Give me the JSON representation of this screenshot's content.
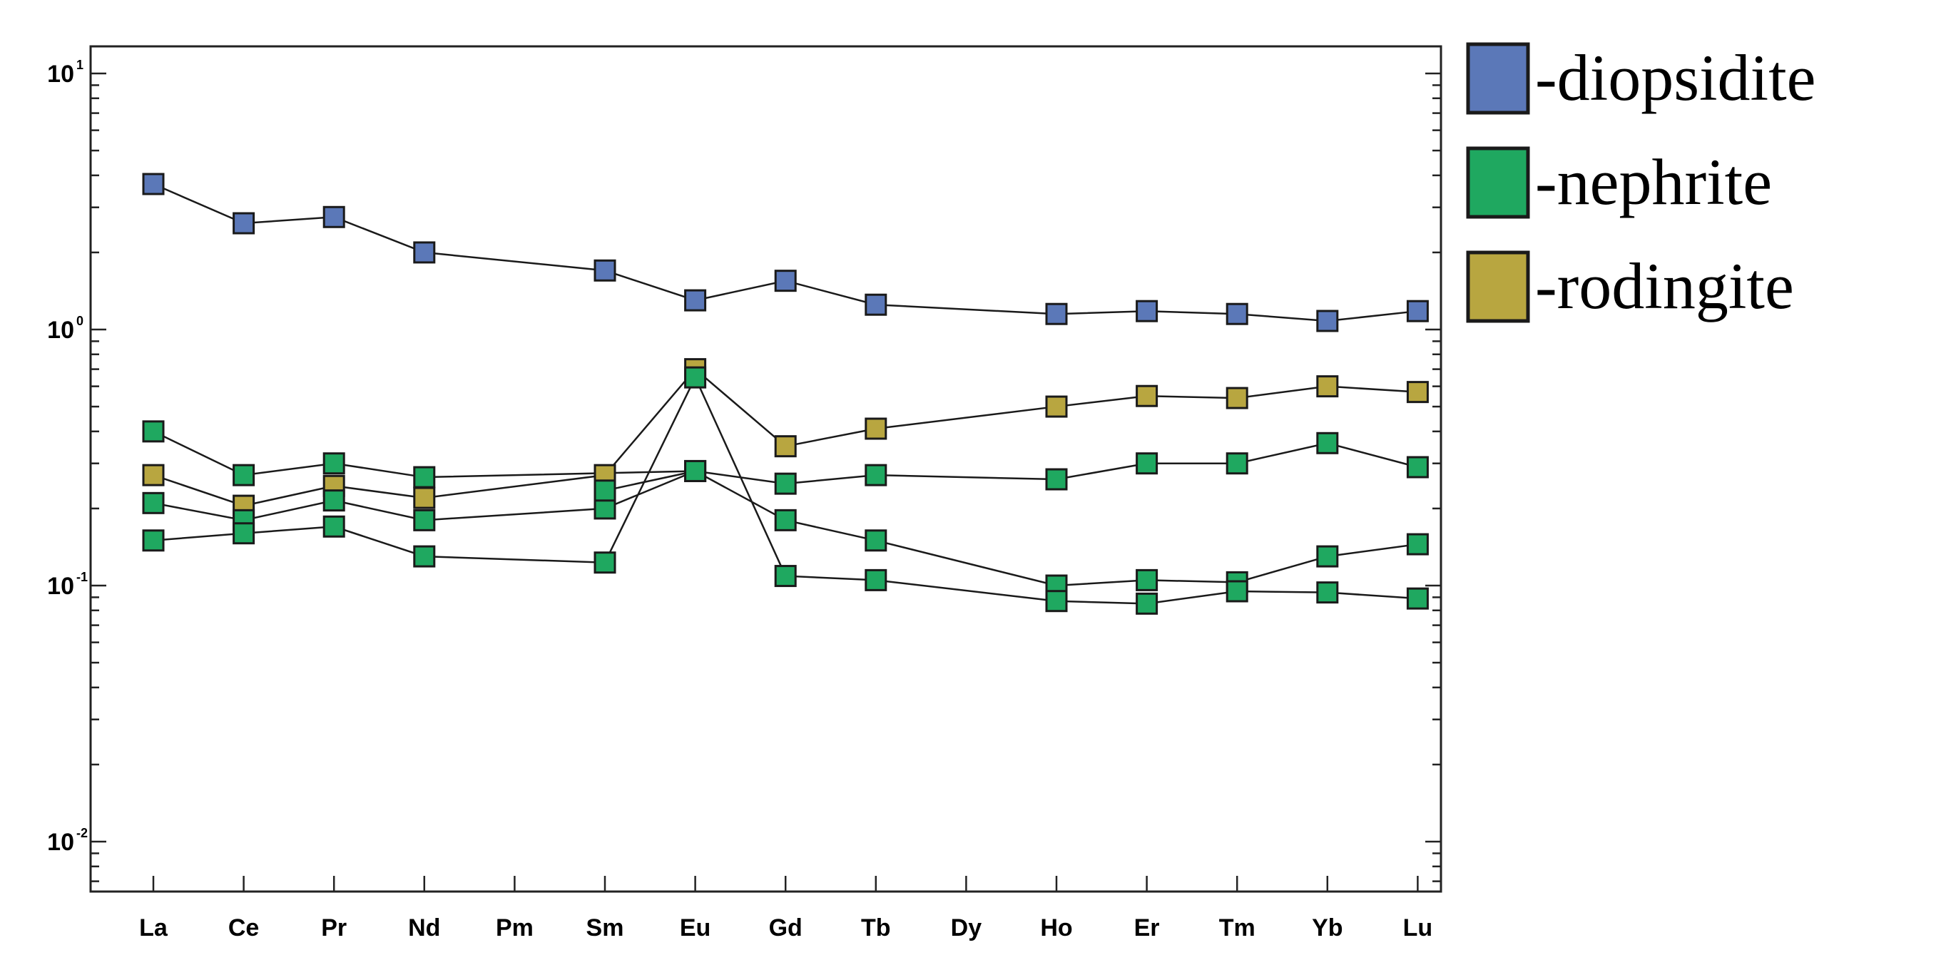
{
  "chart_data": {
    "type": "line",
    "y_scale": "log",
    "ylim": [
      0.001,
      10
    ],
    "grid": false,
    "legend_position": "right",
    "categories": [
      "La",
      "Ce",
      "Pr",
      "Nd",
      "Pm",
      "Sm",
      "Eu",
      "Gd",
      "Tb",
      "Dy",
      "Ho",
      "Er",
      "Tm",
      "Yb",
      "Lu"
    ],
    "y_ticks": [
      {
        "value": 10,
        "base": "10",
        "exp": "1"
      },
      {
        "value": 1,
        "base": "10",
        "exp": "0"
      },
      {
        "value": 0.1,
        "base": "10",
        "exp": "-1"
      },
      {
        "value": 0.01,
        "base": "10",
        "exp": "-2"
      }
    ],
    "legend": [
      {
        "label": "-diopsidite",
        "color": "#5b78b8"
      },
      {
        "label": "-nephrite",
        "color": "#1fa860"
      },
      {
        "label": "-rodingite",
        "color": "#b8a640"
      }
    ],
    "series": [
      {
        "color": "#5b78b8",
        "values": [
          3.7,
          2.6,
          2.75,
          2.0,
          null,
          1.7,
          1.3,
          1.55,
          1.25,
          null,
          1.15,
          1.18,
          1.15,
          1.08,
          1.18
        ]
      },
      {
        "color": "#1fa860",
        "values": [
          0.4,
          0.27,
          0.3,
          0.265,
          null,
          null,
          0.28,
          0.25,
          0.27,
          null,
          0.26,
          0.3,
          0.3,
          0.36,
          0.29
        ]
      },
      {
        "color": "#b8a640",
        "values": [
          0.27,
          0.205,
          0.245,
          0.22,
          null,
          0.27,
          0.7,
          0.35,
          0.41,
          null,
          0.5,
          0.55,
          0.54,
          0.6,
          0.57
        ]
      },
      {
        "color": "#1fa860",
        "values": [
          0.21,
          0.18,
          0.215,
          0.18,
          null,
          0.2,
          0.28,
          0.18,
          0.15,
          null,
          0.1,
          0.105,
          0.103,
          0.13,
          0.145
        ]
      },
      {
        "color": "#1fa860",
        "values": [
          0.15,
          0.16,
          0.17,
          0.13,
          null,
          0.123,
          0.65,
          0.109,
          0.105,
          null,
          0.087,
          0.085,
          0.095,
          0.094,
          0.089
        ]
      },
      {
        "color": "#1fa860",
        "values": [
          null,
          null,
          null,
          null,
          null,
          0.235,
          0.28,
          null,
          null,
          null,
          null,
          null,
          null,
          null,
          null
        ]
      }
    ]
  }
}
